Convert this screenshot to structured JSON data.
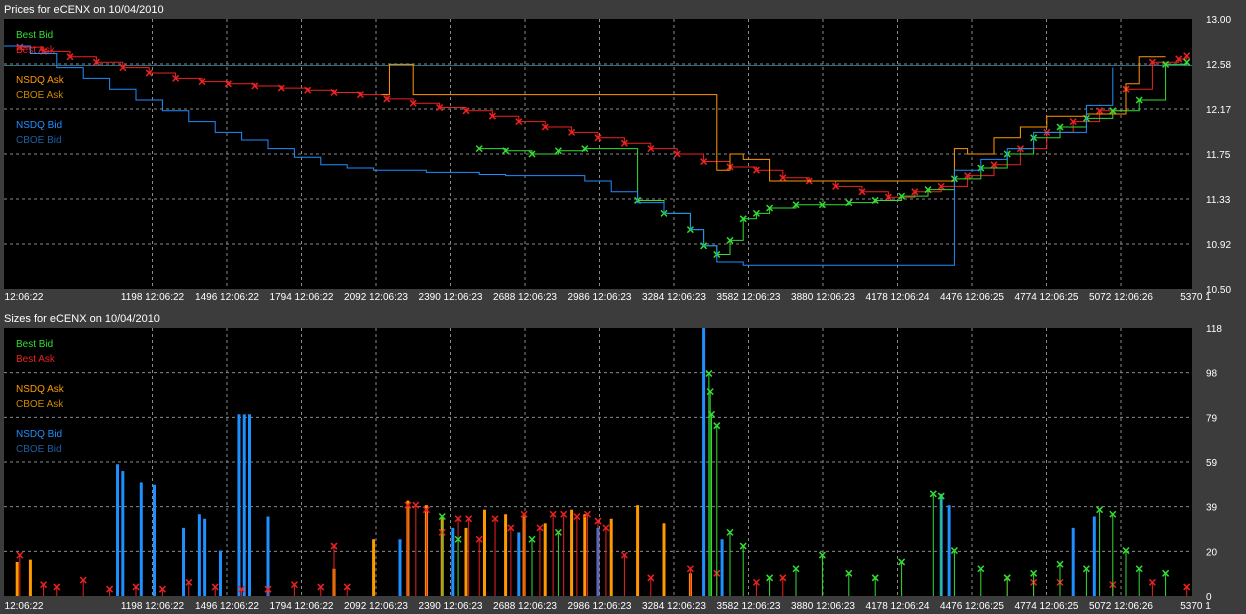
{
  "colors": {
    "best_bid": "#33dd33",
    "best_ask": "#ee2222",
    "nsdq_ask": "#ff9900",
    "cboe_ask": "#cc8800",
    "nsdq_bid": "#1e90ff",
    "cboe_bid": "#1d5fa0",
    "grid": "#8a8a8a",
    "plot_bg": "#000000",
    "frame_bg": "#3c3c3c",
    "text": "#ffffff"
  },
  "legend": [
    {
      "key": "best_bid",
      "label": "Best Bid",
      "color": "#33dd33"
    },
    {
      "key": "best_ask",
      "label": "Best Ask",
      "color": "#ee2222"
    },
    {
      "key": "nsdq_ask",
      "label": "NSDQ Ask",
      "color": "#ff9900"
    },
    {
      "key": "cboe_ask",
      "label": "CBOE Ask",
      "color": "#cc8800"
    },
    {
      "key": "nsdq_bid",
      "label": "NSDQ Bid",
      "color": "#1e90ff"
    },
    {
      "key": "cboe_bid",
      "label": "CBOE Bid",
      "color": "#1d5fa0"
    }
  ],
  "x_tick_labels": [
    "12:06:22",
    "1198 12:06:22",
    "1496 12:06:22",
    "1794 12:06:22",
    "2092 12:06:23",
    "2390 12:06:23",
    "2688 12:06:23",
    "2986 12:06:23",
    "3284 12:06:23",
    "3582 12:06:23",
    "3880 12:06:23",
    "4178 12:06:24",
    "4476 12:06:25",
    "4774 12:06:25",
    "5072 12:06:26",
    "5370 1"
  ],
  "chart_data": [
    {
      "type": "line",
      "title": "Prices for  eCENX  on  10/04/2010",
      "xlim": [
        900,
        5400
      ],
      "ylim": [
        10.5,
        13.0
      ],
      "y_ticks": [
        "13.00",
        "12.58",
        "12.17",
        "11.75",
        "11.33",
        "10.92",
        "10.50"
      ],
      "reference_line": 12.57,
      "series": [
        {
          "name": "Best Ask",
          "key": "best_ask",
          "marker": "x",
          "x": [
            960,
            1050,
            1150,
            1250,
            1350,
            1450,
            1550,
            1650,
            1750,
            1850,
            1950,
            2050,
            2150,
            2250,
            2350,
            2450,
            2550,
            2650,
            2750,
            2850,
            2950,
            3050,
            3150,
            3250,
            3350,
            3450,
            3550,
            3650,
            3750,
            3850,
            3950,
            4050,
            4150,
            4250,
            4350,
            4450,
            4550,
            4650,
            4750,
            4850,
            4950,
            5050,
            5150,
            5250,
            5350,
            5380
          ],
          "y": [
            12.74,
            12.7,
            12.65,
            12.6,
            12.55,
            12.5,
            12.45,
            12.42,
            12.4,
            12.38,
            12.36,
            12.34,
            12.32,
            12.3,
            12.26,
            12.22,
            12.18,
            12.15,
            12.1,
            12.05,
            12.0,
            11.95,
            11.9,
            11.85,
            11.8,
            11.75,
            11.68,
            11.63,
            11.6,
            11.53,
            11.5,
            11.45,
            11.4,
            11.35,
            11.4,
            11.45,
            11.55,
            11.65,
            11.8,
            11.95,
            12.05,
            12.15,
            12.35,
            12.6,
            12.63,
            12.66
          ]
        },
        {
          "name": "Best Bid",
          "key": "best_bid",
          "marker": "x",
          "x": [
            2700,
            2800,
            2900,
            3000,
            3100,
            3300,
            3400,
            3500,
            3550,
            3600,
            3650,
            3700,
            3750,
            3800,
            3900,
            4000,
            4100,
            4200,
            4300,
            4400,
            4500,
            4600,
            4700,
            4800,
            4900,
            5000,
            5100,
            5200,
            5300,
            5380
          ],
          "y": [
            11.8,
            11.78,
            11.75,
            11.78,
            11.8,
            11.32,
            11.2,
            11.05,
            10.9,
            10.82,
            10.95,
            11.15,
            11.2,
            11.25,
            11.28,
            11.28,
            11.3,
            11.32,
            11.36,
            11.42,
            11.52,
            11.62,
            11.75,
            11.9,
            12.0,
            12.08,
            12.15,
            12.25,
            12.58,
            12.6
          ]
        },
        {
          "name": "NSDQ Ask",
          "key": "nsdq_ask",
          "x": [
            2330,
            2360,
            2400,
            2450,
            3600,
            3650,
            3700,
            3800,
            4500,
            4550,
            4650,
            4750,
            4850,
            5000,
            5150,
            5200,
            5300
          ],
          "y": [
            12.3,
            12.58,
            12.58,
            12.3,
            11.6,
            11.75,
            11.7,
            11.5,
            11.8,
            11.75,
            11.9,
            12.0,
            12.1,
            12.12,
            12.4,
            12.65,
            12.65
          ]
        },
        {
          "name": "NSDQ Bid",
          "key": "nsdq_bid",
          "x": [
            900,
            1000,
            1100,
            1200,
            1300,
            1400,
            1500,
            1600,
            1700,
            1800,
            1900,
            2000,
            2100,
            2200,
            2300,
            2400,
            2500,
            2600,
            2700,
            2800,
            2900,
            3000,
            3100,
            3200,
            3300,
            3400,
            3500,
            3550,
            3600,
            3700,
            3800,
            4500,
            4600,
            4700,
            4800,
            5000,
            5100
          ],
          "y": [
            12.75,
            12.68,
            12.55,
            12.45,
            12.35,
            12.25,
            12.15,
            12.05,
            11.95,
            11.88,
            11.8,
            11.72,
            11.65,
            11.62,
            11.6,
            11.6,
            11.58,
            11.58,
            11.56,
            11.55,
            11.55,
            11.55,
            11.5,
            11.4,
            11.3,
            11.2,
            11.05,
            10.9,
            10.75,
            10.72,
            10.72,
            11.6,
            11.7,
            11.8,
            11.95,
            12.2,
            12.55
          ]
        },
        {
          "name": "CBOE Bid",
          "key": "cboe_bid",
          "x": [
            900,
            5400
          ],
          "y": [
            12.57,
            12.57
          ]
        }
      ]
    },
    {
      "type": "bar",
      "title": "Sizes for  eCENX  on  10/04/2010",
      "xlim": [
        900,
        5400
      ],
      "ylim": [
        0,
        118
      ],
      "y_ticks": [
        "118",
        "98",
        "79",
        "59",
        "39",
        "20",
        "0"
      ],
      "series": [
        {
          "name": "NSDQ Bid",
          "key": "nsdq_bid",
          "x": [
            1330,
            1350,
            1420,
            1470,
            1580,
            1640,
            1660,
            1720,
            1790,
            1810,
            1830,
            1900,
            2400,
            2600,
            2850,
            3150,
            3550,
            3620,
            4450,
            4480,
            4950,
            5030
          ],
          "y": [
            58,
            55,
            50,
            49,
            30,
            36,
            34,
            20,
            80,
            80,
            80,
            35,
            25,
            30,
            28,
            30,
            118,
            25,
            45,
            40,
            30,
            35
          ]
        },
        {
          "name": "NSDQ Ask",
          "key": "nsdq_ask",
          "x": [
            950,
            1000,
            2150,
            2300,
            2430,
            2500,
            2560,
            2650,
            2720,
            2800,
            2870,
            2950,
            3050,
            3100,
            3200,
            3300,
            3400,
            3500
          ],
          "y": [
            15,
            16,
            12,
            25,
            42,
            40,
            35,
            30,
            38,
            36,
            35,
            32,
            38,
            36,
            34,
            40,
            32,
            10
          ]
        },
        {
          "name": "Best Ask",
          "key": "best_ask",
          "marker": "x",
          "x": [
            960,
            1050,
            1100,
            1200,
            1300,
            1400,
            1500,
            1600,
            1700,
            1800,
            1900,
            2000,
            2100,
            2150,
            2200,
            2430,
            2460,
            2500,
            2560,
            2620,
            2660,
            2700,
            2760,
            2820,
            2870,
            2930,
            2980,
            3020,
            3070,
            3110,
            3150,
            3180,
            3250,
            3350,
            3500,
            3600,
            3750,
            3850,
            4700,
            4800,
            4900,
            5100,
            5250,
            5380
          ],
          "y": [
            18,
            5,
            4,
            7,
            3,
            4,
            3,
            6,
            4,
            3,
            3,
            5,
            4,
            22,
            4,
            40,
            40,
            38,
            28,
            34,
            34,
            25,
            34,
            30,
            36,
            30,
            36,
            36,
            35,
            36,
            33,
            30,
            18,
            8,
            12,
            10,
            6,
            8,
            8,
            6,
            6,
            5,
            6,
            4
          ]
        },
        {
          "name": "Best Bid",
          "key": "best_bid",
          "marker": "x",
          "x": [
            2560,
            2620,
            2900,
            3000,
            3570,
            3575,
            3580,
            3600,
            3650,
            3700,
            3800,
            3900,
            4000,
            4100,
            4200,
            4300,
            4420,
            4450,
            4500,
            4600,
            4700,
            4800,
            4900,
            5000,
            5050,
            5100,
            5150,
            5200,
            5300
          ],
          "y": [
            35,
            25,
            25,
            28,
            98,
            90,
            80,
            75,
            28,
            22,
            8,
            12,
            18,
            10,
            8,
            15,
            45,
            44,
            20,
            12,
            8,
            10,
            14,
            12,
            38,
            36,
            20,
            12,
            10
          ]
        }
      ]
    }
  ]
}
